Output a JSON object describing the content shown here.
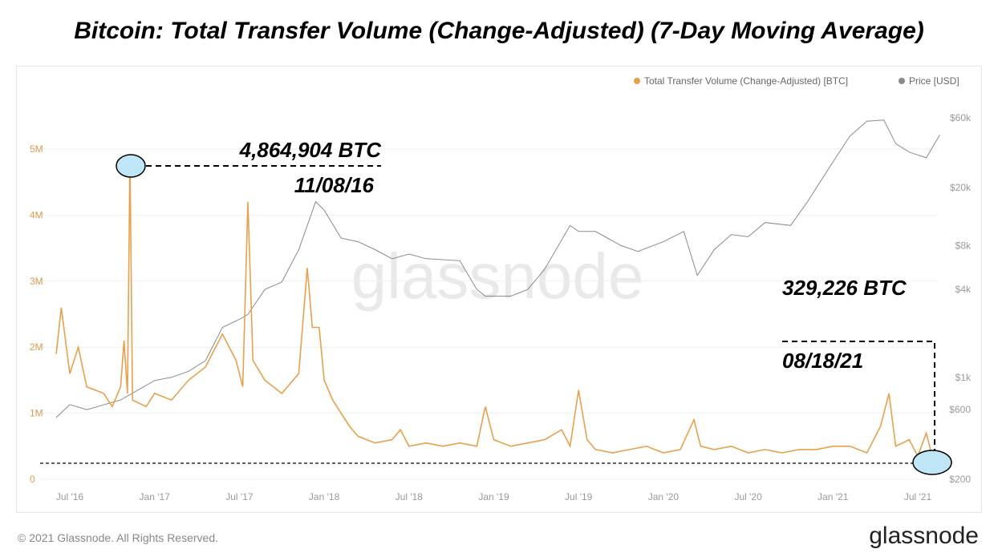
{
  "title": "Bitcoin: Total Transfer Volume (Change-Adjusted) (7-Day Moving Average)",
  "footer": "© 2021 Glassnode. All Rights Reserved.",
  "brand": "glassnode",
  "watermark": "glassnode",
  "colors": {
    "volume": "#e8a04c",
    "price": "#8a8a8a",
    "highlight": "#bfe6f7"
  },
  "chart_data": {
    "type": "line",
    "title": "Bitcoin: Total Transfer Volume (Change-Adjusted) (7-Day Moving Average)",
    "legend": [
      "Total Transfer Volume (Change-Adjusted) [BTC]",
      "Price [USD]"
    ],
    "legend_position": "top-right",
    "x_ticks": [
      "Jul '16",
      "Jan '17",
      "Jul '17",
      "Jan '18",
      "Jul '18",
      "Jan '19",
      "Jul '19",
      "Jan '20",
      "Jul '20",
      "Jan '21",
      "Jul '21"
    ],
    "x_tick_years": [
      2016.5,
      2017,
      2017.5,
      2018,
      2018.5,
      2019,
      2019.5,
      2020,
      2020.5,
      2021,
      2021.5
    ],
    "y_left_ticks": [
      "0",
      "1M",
      "2M",
      "3M",
      "4M",
      "5M"
    ],
    "y_left_values": [
      0,
      1,
      2,
      3,
      4,
      5
    ],
    "y_right_ticks": [
      "$200",
      "$600",
      "$1k",
      "$4k",
      "$8k",
      "$20k",
      "$60k"
    ],
    "y_right_values": [
      200,
      600,
      1000,
      4000,
      8000,
      20000,
      60000
    ],
    "y_right_scale": "log",
    "series": [
      {
        "name": "Total Transfer Volume (Change-Adjusted) [BTC]",
        "unit": "M BTC",
        "points": [
          [
            2016.42,
            1.9
          ],
          [
            2016.45,
            2.6
          ],
          [
            2016.5,
            1.6
          ],
          [
            2016.55,
            2.0
          ],
          [
            2016.6,
            1.4
          ],
          [
            2016.7,
            1.3
          ],
          [
            2016.75,
            1.1
          ],
          [
            2016.8,
            1.4
          ],
          [
            2016.82,
            2.1
          ],
          [
            2016.84,
            1.3
          ],
          [
            2016.855,
            4.86
          ],
          [
            2016.87,
            1.2
          ],
          [
            2016.95,
            1.1
          ],
          [
            2017.0,
            1.3
          ],
          [
            2017.1,
            1.2
          ],
          [
            2017.2,
            1.5
          ],
          [
            2017.3,
            1.7
          ],
          [
            2017.4,
            2.2
          ],
          [
            2017.48,
            1.8
          ],
          [
            2017.52,
            1.4
          ],
          [
            2017.55,
            4.2
          ],
          [
            2017.58,
            1.8
          ],
          [
            2017.65,
            1.5
          ],
          [
            2017.75,
            1.3
          ],
          [
            2017.85,
            1.6
          ],
          [
            2017.9,
            3.2
          ],
          [
            2017.93,
            2.3
          ],
          [
            2017.97,
            2.3
          ],
          [
            2018.0,
            1.5
          ],
          [
            2018.05,
            1.2
          ],
          [
            2018.1,
            1.0
          ],
          [
            2018.15,
            0.8
          ],
          [
            2018.2,
            0.65
          ],
          [
            2018.3,
            0.55
          ],
          [
            2018.4,
            0.6
          ],
          [
            2018.45,
            0.75
          ],
          [
            2018.5,
            0.5
          ],
          [
            2018.6,
            0.55
          ],
          [
            2018.7,
            0.5
          ],
          [
            2018.8,
            0.55
          ],
          [
            2018.9,
            0.5
          ],
          [
            2018.95,
            1.1
          ],
          [
            2019.0,
            0.6
          ],
          [
            2019.1,
            0.5
          ],
          [
            2019.2,
            0.55
          ],
          [
            2019.3,
            0.6
          ],
          [
            2019.4,
            0.75
          ],
          [
            2019.45,
            0.5
          ],
          [
            2019.5,
            1.35
          ],
          [
            2019.55,
            0.6
          ],
          [
            2019.6,
            0.45
          ],
          [
            2019.7,
            0.4
          ],
          [
            2019.8,
            0.45
          ],
          [
            2019.9,
            0.5
          ],
          [
            2020.0,
            0.4
          ],
          [
            2020.1,
            0.45
          ],
          [
            2020.18,
            0.9
          ],
          [
            2020.22,
            0.5
          ],
          [
            2020.3,
            0.45
          ],
          [
            2020.4,
            0.5
          ],
          [
            2020.5,
            0.4
          ],
          [
            2020.6,
            0.45
          ],
          [
            2020.7,
            0.4
          ],
          [
            2020.8,
            0.45
          ],
          [
            2020.9,
            0.45
          ],
          [
            2021.0,
            0.5
          ],
          [
            2021.1,
            0.5
          ],
          [
            2021.2,
            0.4
          ],
          [
            2021.28,
            0.8
          ],
          [
            2021.33,
            1.3
          ],
          [
            2021.37,
            0.5
          ],
          [
            2021.45,
            0.6
          ],
          [
            2021.5,
            0.35
          ],
          [
            2021.55,
            0.7
          ],
          [
            2021.58,
            0.4
          ],
          [
            2021.63,
            0.33
          ]
        ]
      },
      {
        "name": "Price [USD]",
        "unit": "USD",
        "points": [
          [
            2016.42,
            530
          ],
          [
            2016.5,
            650
          ],
          [
            2016.6,
            600
          ],
          [
            2016.8,
            700
          ],
          [
            2017.0,
            950
          ],
          [
            2017.1,
            1000
          ],
          [
            2017.2,
            1100
          ],
          [
            2017.3,
            1300
          ],
          [
            2017.4,
            2200
          ],
          [
            2017.5,
            2500
          ],
          [
            2017.55,
            2700
          ],
          [
            2017.65,
            4000
          ],
          [
            2017.75,
            4500
          ],
          [
            2017.85,
            7500
          ],
          [
            2017.95,
            16000
          ],
          [
            2018.0,
            14000
          ],
          [
            2018.1,
            9000
          ],
          [
            2018.2,
            8500
          ],
          [
            2018.3,
            7500
          ],
          [
            2018.4,
            6500
          ],
          [
            2018.5,
            7000
          ],
          [
            2018.6,
            6500
          ],
          [
            2018.8,
            6300
          ],
          [
            2018.9,
            4000
          ],
          [
            2018.95,
            3600
          ],
          [
            2019.1,
            3600
          ],
          [
            2019.2,
            4000
          ],
          [
            2019.3,
            5500
          ],
          [
            2019.45,
            11000
          ],
          [
            2019.5,
            10000
          ],
          [
            2019.6,
            10000
          ],
          [
            2019.75,
            8000
          ],
          [
            2019.85,
            7300
          ],
          [
            2020.0,
            8500
          ],
          [
            2020.12,
            10000
          ],
          [
            2020.2,
            5000
          ],
          [
            2020.3,
            7500
          ],
          [
            2020.4,
            9500
          ],
          [
            2020.5,
            9200
          ],
          [
            2020.6,
            11500
          ],
          [
            2020.75,
            11000
          ],
          [
            2020.85,
            16000
          ],
          [
            2021.0,
            30000
          ],
          [
            2021.1,
            45000
          ],
          [
            2021.2,
            57000
          ],
          [
            2021.3,
            58000
          ],
          [
            2021.37,
            40000
          ],
          [
            2021.45,
            35000
          ],
          [
            2021.55,
            32000
          ],
          [
            2021.63,
            46000
          ]
        ]
      }
    ],
    "annotations": [
      {
        "value": "4,864,904 BTC",
        "date": "11/08/16",
        "x": 2016.855,
        "y": 4.86
      },
      {
        "value": "329,226 BTC",
        "date": "08/18/21",
        "x": 2021.63,
        "y": 0.33
      }
    ]
  }
}
